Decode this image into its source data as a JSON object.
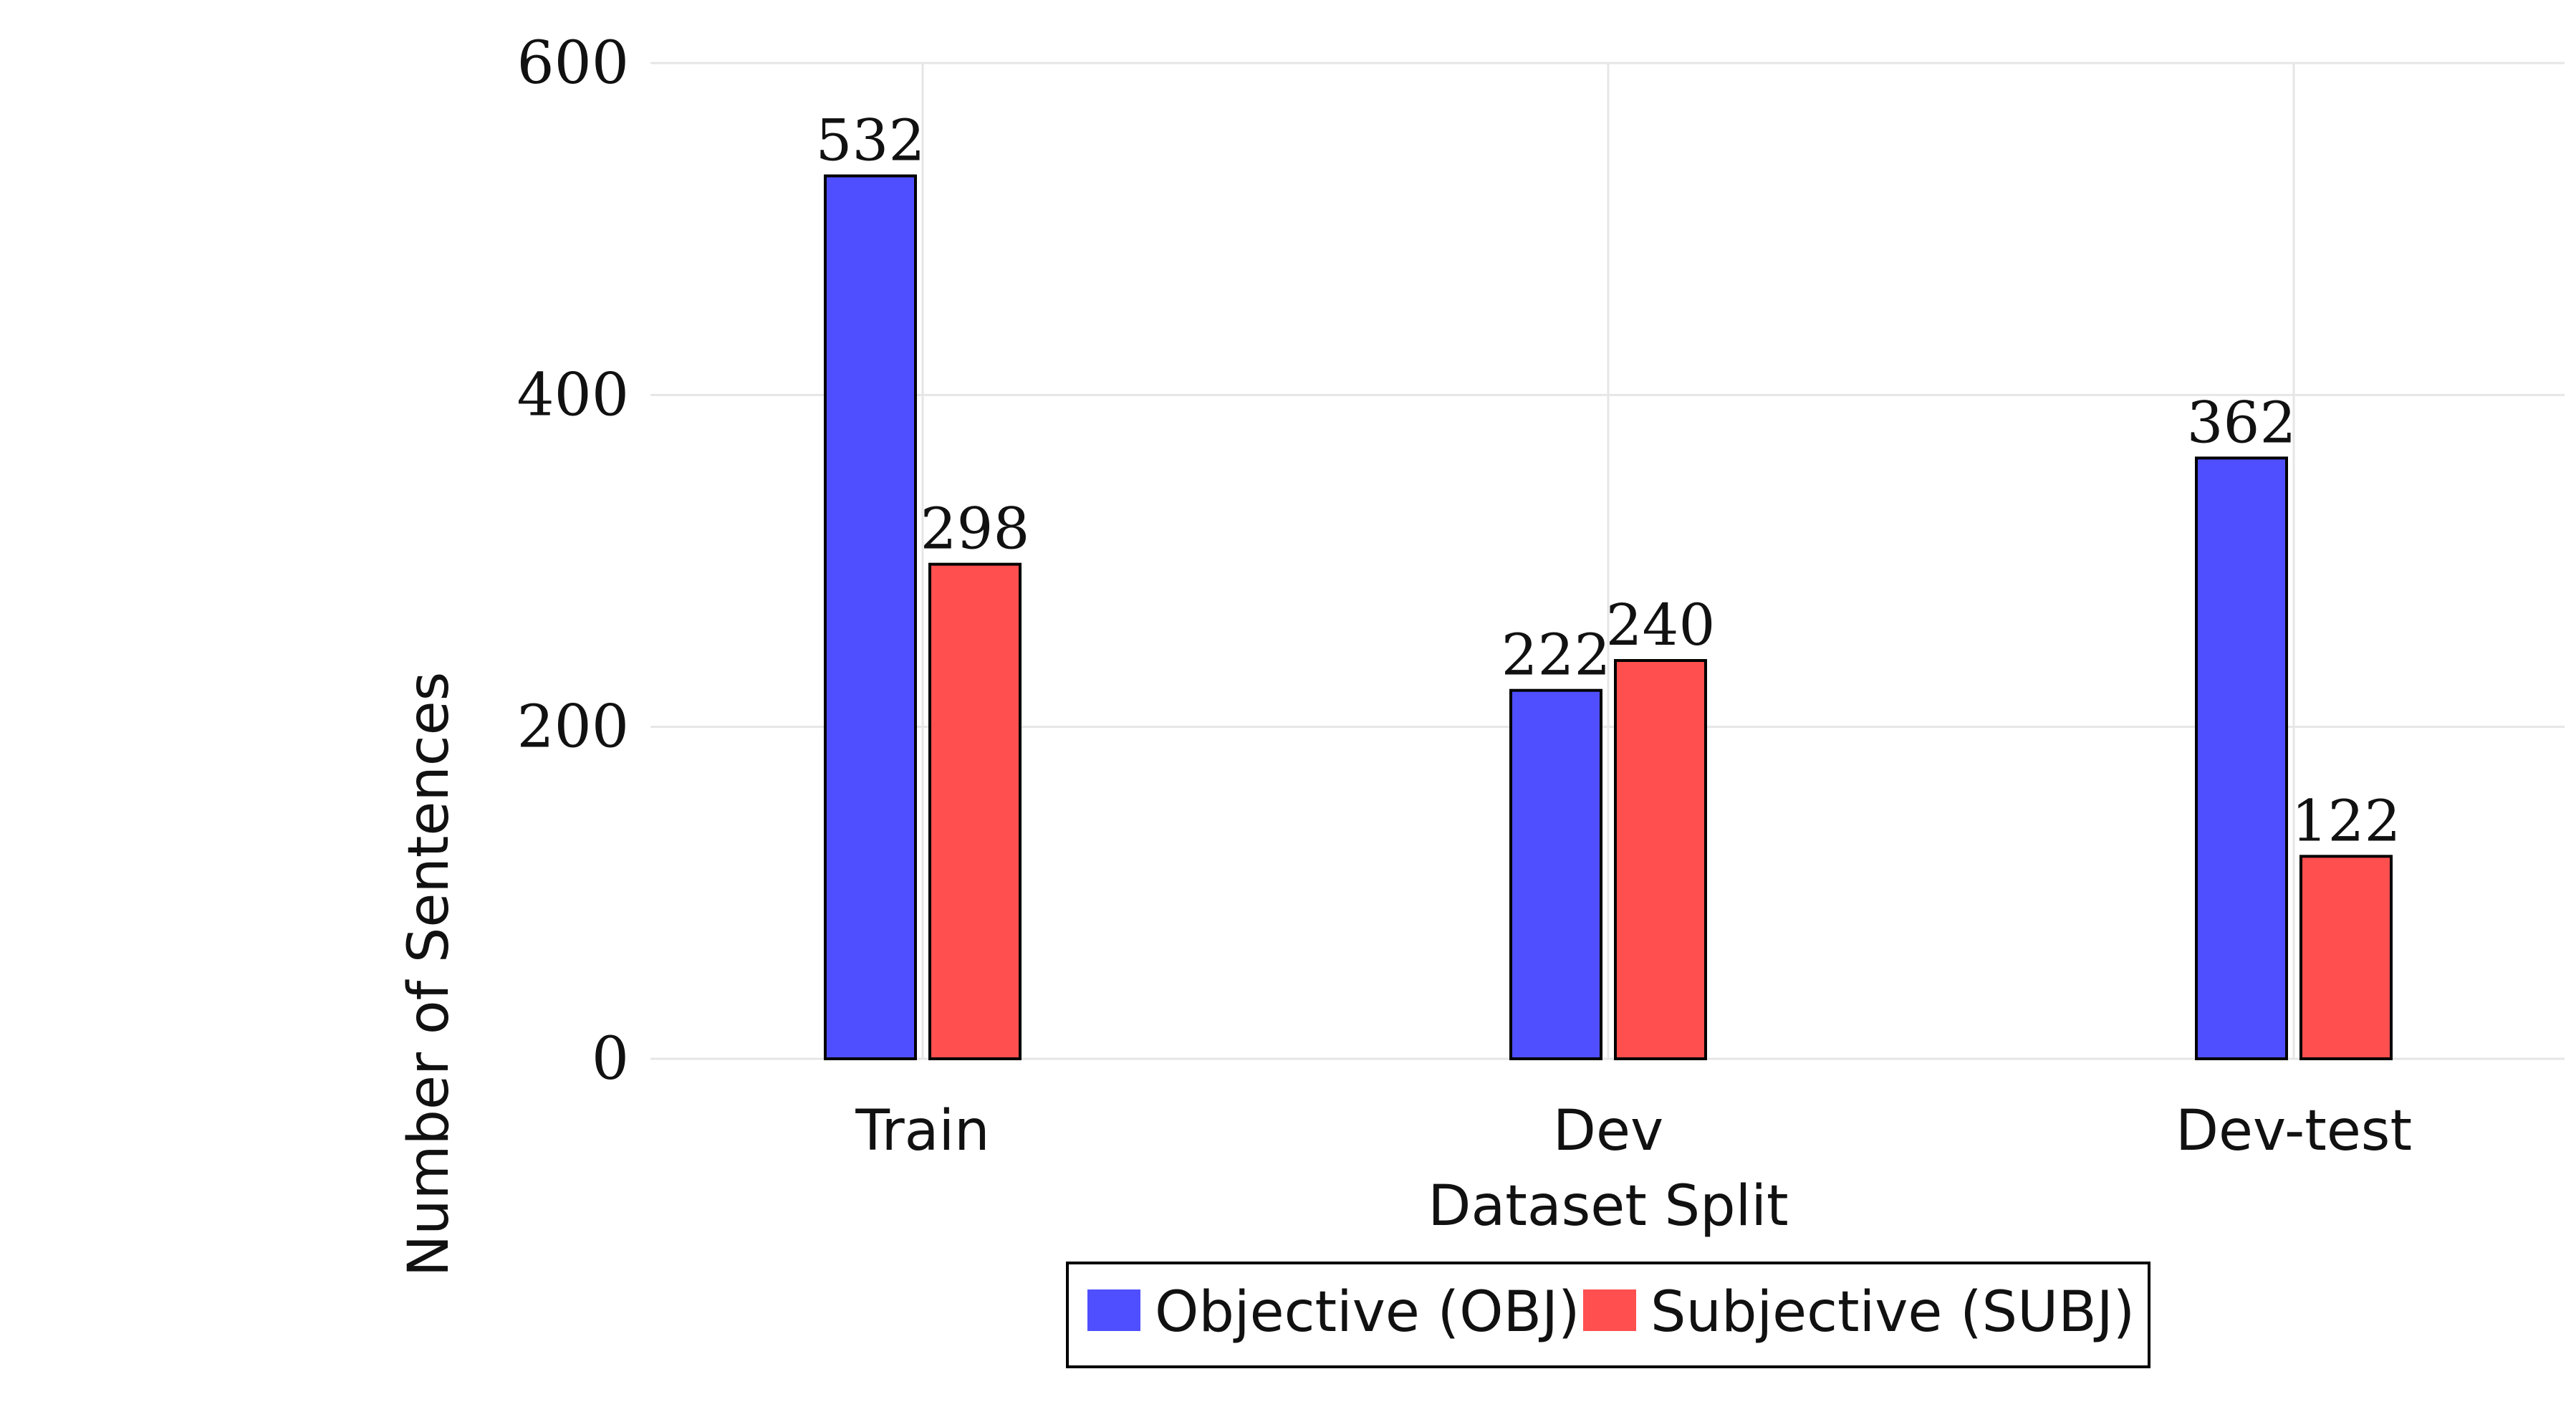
{
  "chart_data": {
    "type": "bar",
    "categories": [
      "Train",
      "Dev",
      "Dev-test"
    ],
    "series": [
      {
        "name": "Objective (OBJ)",
        "values": [
          532,
          222,
          362
        ],
        "color": "#4f4fff"
      },
      {
        "name": "Subjective (SUBJ)",
        "values": [
          298,
          240,
          122
        ],
        "color": "#ff4f4f"
      }
    ],
    "xlabel": "Dataset Split",
    "ylabel": "Number of Sentences",
    "ylim": [
      0,
      600
    ],
    "yticks": [
      0,
      200,
      400,
      600
    ],
    "grid": true,
    "legend_position": "bottom-center"
  },
  "colors": {
    "grid": "#e6e6e6",
    "bar_outline": "#000000"
  }
}
